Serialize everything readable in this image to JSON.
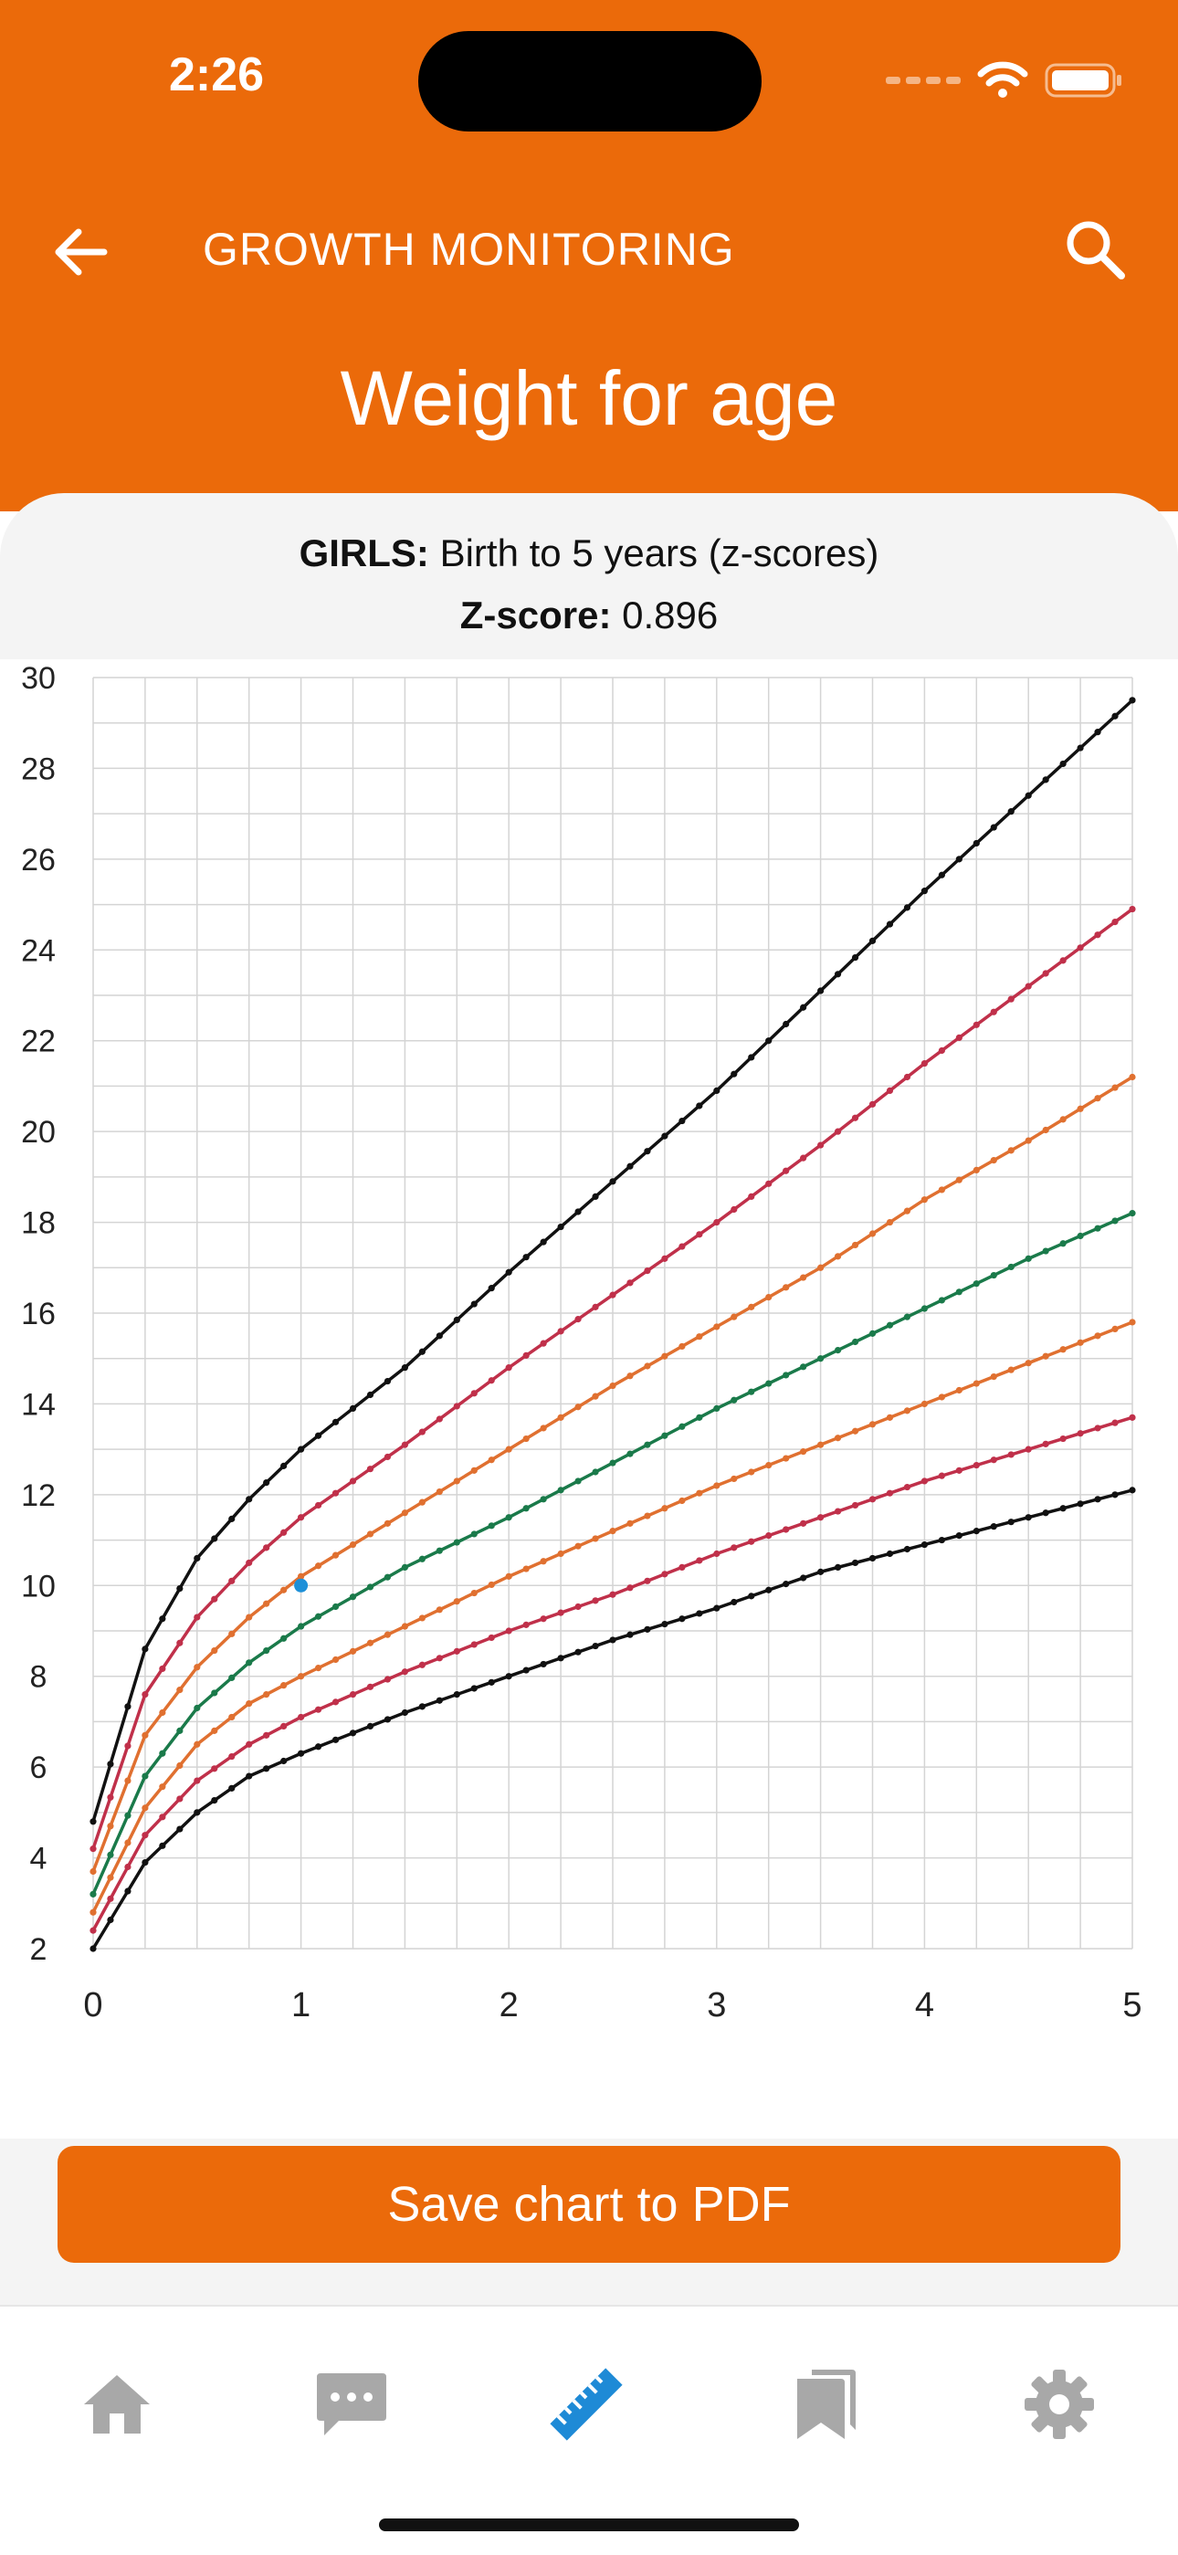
{
  "status_bar": {
    "time": "2:26"
  },
  "nav": {
    "title": "GROWTH MONITORING"
  },
  "page_title": "Weight for age",
  "subtitle": {
    "group_label": "GIRLS:",
    "group_text": " Birth to 5 years (z-scores)",
    "zscore_label": "Z-score:",
    "zscore_value": " 0.896"
  },
  "chart_data": {
    "type": "line",
    "title": "",
    "xlabel": "",
    "ylabel": "",
    "xlim": [
      0,
      5
    ],
    "ylim": [
      2,
      30
    ],
    "x_ticks": [
      "0",
      "1",
      "2",
      "3",
      "4",
      "5"
    ],
    "y_ticks": [
      "2",
      "4",
      "6",
      "8",
      "10",
      "12",
      "14",
      "16",
      "18",
      "20",
      "22",
      "24",
      "26",
      "28",
      "30"
    ],
    "grid": true,
    "x": [
      0,
      0.25,
      0.5,
      0.75,
      1,
      1.5,
      2,
      2.5,
      3,
      3.5,
      4,
      4.5,
      5
    ],
    "series": [
      {
        "color": "#111111",
        "values": [
          4.8,
          8.6,
          10.6,
          11.9,
          13.0,
          14.8,
          16.9,
          18.9,
          20.9,
          23.1,
          25.3,
          27.4,
          29.5
        ]
      },
      {
        "color": "#C0304A",
        "values": [
          4.2,
          7.6,
          9.3,
          10.5,
          11.5,
          13.1,
          14.8,
          16.4,
          18.0,
          19.7,
          21.5,
          23.2,
          24.9
        ]
      },
      {
        "color": "#E07030",
        "values": [
          3.7,
          6.7,
          8.2,
          9.3,
          10.2,
          11.6,
          13.0,
          14.4,
          15.7,
          17.0,
          18.5,
          19.8,
          21.2
        ]
      },
      {
        "color": "#1A7A4A",
        "values": [
          3.2,
          5.8,
          7.3,
          8.3,
          9.1,
          10.4,
          11.5,
          12.7,
          13.9,
          15.0,
          16.1,
          17.2,
          18.2
        ]
      },
      {
        "color": "#E07030",
        "values": [
          2.8,
          5.1,
          6.5,
          7.4,
          8.0,
          9.1,
          10.2,
          11.2,
          12.2,
          13.1,
          14.0,
          14.9,
          15.8
        ]
      },
      {
        "color": "#C0304A",
        "values": [
          2.4,
          4.5,
          5.7,
          6.5,
          7.1,
          8.1,
          9.0,
          9.8,
          10.7,
          11.5,
          12.3,
          13.0,
          13.7
        ]
      },
      {
        "color": "#111111",
        "values": [
          2.0,
          3.9,
          5.0,
          5.8,
          6.3,
          7.2,
          8.0,
          8.8,
          9.5,
          10.3,
          10.9,
          11.5,
          12.1
        ]
      }
    ],
    "point": {
      "x": 1,
      "y": 10.0,
      "color": "#1E90D8"
    }
  },
  "save_button": {
    "label": "Save chart to PDF"
  },
  "tabs": [
    {
      "name": "home",
      "icon": "home-icon",
      "active": false
    },
    {
      "name": "messages",
      "icon": "chat-icon",
      "active": false
    },
    {
      "name": "measure",
      "icon": "ruler-icon",
      "active": true
    },
    {
      "name": "library",
      "icon": "bookmarks-icon",
      "active": false
    },
    {
      "name": "settings",
      "icon": "gear-icon",
      "active": false
    }
  ],
  "colors": {
    "brand": "#EB6A0A",
    "tab_active": "#1E8AD6",
    "tab_inactive": "#A8A8A8"
  }
}
